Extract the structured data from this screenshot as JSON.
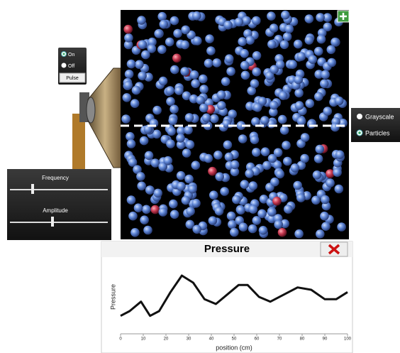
{
  "source_controls": {
    "on": "On",
    "off": "Off",
    "pulse": "Pulse"
  },
  "sliders": {
    "frequency": "Frequency",
    "amplitude": "Amplitude"
  },
  "view_options": {
    "grayscale": "Grayscale",
    "particles": "Particles"
  },
  "chart_data": {
    "type": "line",
    "title": "Pressure",
    "y_label": "Pressure",
    "x_label": "position (cm)",
    "x": [
      0,
      4,
      9,
      13,
      17,
      22,
      27,
      32,
      37,
      42,
      47,
      52,
      56,
      61,
      66,
      72,
      78,
      84,
      90,
      95,
      100
    ],
    "values": [
      -0.8,
      -0.6,
      -0.2,
      -0.8,
      -0.6,
      0.2,
      0.9,
      0.6,
      -0.1,
      -0.3,
      0.1,
      0.5,
      0.5,
      0.0,
      -0.2,
      0.1,
      0.4,
      0.3,
      -0.1,
      -0.1,
      0.2
    ],
    "color": "#111111",
    "xlim": [
      0,
      100
    ],
    "xticks": [
      0,
      10,
      20,
      30,
      40,
      50,
      60,
      70,
      80,
      90,
      100
    ],
    "ylim": [
      -1.5,
      1.5
    ]
  }
}
